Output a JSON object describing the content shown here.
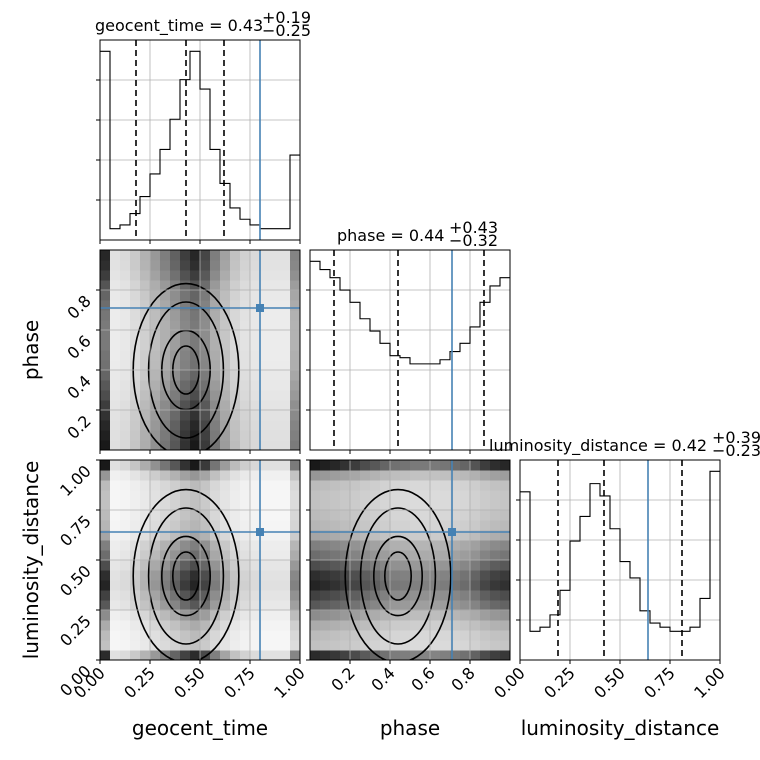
{
  "chart_data": {
    "type": "corner",
    "parameters": [
      "geocent_time",
      "phase",
      "luminosity_distance"
    ],
    "truths": {
      "geocent_time": 0.8,
      "phase": 0.71,
      "luminosity_distance": 0.64
    },
    "truth_color": "#4682b4",
    "grid": true,
    "titles": {
      "geocent_time": {
        "text": "geocent_time = 0.43",
        "plus": "+0.19",
        "minus": "−0.25"
      },
      "phase": {
        "text": "phase = 0.44",
        "plus": "+0.43",
        "minus": "−0.32"
      },
      "luminosity_distance": {
        "text": "luminosity_distance = 0.42",
        "plus": "+0.39",
        "minus": "−0.23"
      }
    },
    "axis_labels": {
      "geocent_time": "geocent_time",
      "phase": "phase",
      "luminosity_distance": "luminosity_distance"
    },
    "ranges": {
      "geocent_time": [
        0.0,
        1.0
      ],
      "phase": [
        0.0,
        1.0
      ],
      "luminosity_distance": [
        0.0,
        1.0
      ]
    },
    "tick_labels": {
      "geocent_time": [
        "0.00",
        "0.25",
        "0.50",
        "0.75",
        "1.00"
      ],
      "phase": [
        "0.2",
        "0.4",
        "0.6",
        "0.8"
      ],
      "luminosity_distance": [
        "0.00",
        "0.25",
        "0.50",
        "0.75",
        "1.00"
      ]
    },
    "tick_values": {
      "geocent_time": [
        0.0,
        0.25,
        0.5,
        0.75,
        1.0
      ],
      "phase": [
        0.2,
        0.4,
        0.6,
        0.8
      ],
      "luminosity_distance": [
        0.0,
        0.25,
        0.5,
        0.75,
        1.0
      ]
    },
    "histograms": {
      "geocent_time": {
        "edges": [
          0.0,
          0.05,
          0.1,
          0.15,
          0.2,
          0.25,
          0.3,
          0.35,
          0.4,
          0.45,
          0.5,
          0.55,
          0.6,
          0.65,
          0.7,
          0.75,
          0.8,
          0.85,
          0.9,
          0.95,
          1.0
        ],
        "counts": [
          100,
          6,
          8,
          14,
          23,
          35,
          48,
          64,
          85,
          100,
          80,
          48,
          30,
          17,
          11,
          8,
          6,
          6,
          6,
          45
        ],
        "quantiles": [
          0.18,
          0.43,
          0.62
        ]
      },
      "phase": {
        "edges": [
          0.0,
          0.05,
          0.1,
          0.15,
          0.2,
          0.25,
          0.3,
          0.35,
          0.4,
          0.45,
          0.5,
          0.55,
          0.6,
          0.65,
          0.7,
          0.75,
          0.8,
          0.85,
          0.9,
          0.95,
          1.0
        ],
        "counts": [
          92,
          88,
          84,
          78,
          72,
          64,
          58,
          52,
          46,
          45,
          42,
          42,
          42,
          44,
          48,
          52,
          60,
          72,
          80,
          84
        ],
        "quantiles": [
          0.12,
          0.44,
          0.87
        ]
      },
      "luminosity_distance": {
        "edges": [
          0.0,
          0.05,
          0.1,
          0.15,
          0.2,
          0.25,
          0.3,
          0.35,
          0.4,
          0.45,
          0.5,
          0.55,
          0.6,
          0.65,
          0.7,
          0.75,
          0.8,
          0.85,
          0.9,
          0.95,
          1.0
        ],
        "counts": [
          82,
          14,
          16,
          22,
          34,
          58,
          70,
          86,
          80,
          64,
          48,
          40,
          24,
          18,
          16,
          14,
          14,
          16,
          30,
          92
        ],
        "quantiles": [
          0.19,
          0.42,
          0.81
        ]
      }
    },
    "contour_panels": [
      {
        "x": "geocent_time",
        "y": "phase"
      },
      {
        "x": "geocent_time",
        "y": "luminosity_distance"
      },
      {
        "x": "phase",
        "y": "luminosity_distance"
      }
    ]
  }
}
